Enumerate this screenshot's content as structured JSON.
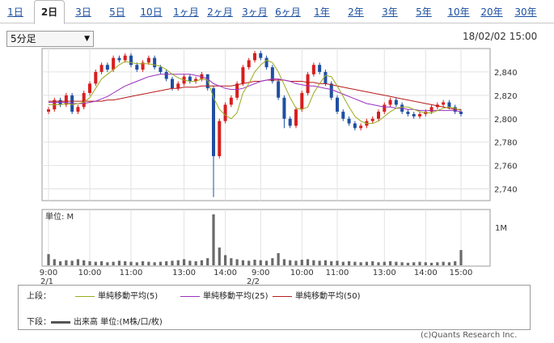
{
  "tabs": [
    {
      "label": "1日"
    },
    {
      "label": "2日"
    },
    {
      "label": "3日"
    },
    {
      "label": "5日"
    },
    {
      "label": "10日"
    },
    {
      "label": "1ヶ月"
    },
    {
      "label": "2ヶ月"
    },
    {
      "label": "3ヶ月"
    },
    {
      "label": "6ヶ月"
    },
    {
      "label": "1年"
    },
    {
      "label": "2年"
    },
    {
      "label": "3年"
    },
    {
      "label": "5年"
    },
    {
      "label": "10年"
    },
    {
      "label": "20年"
    },
    {
      "label": "30年"
    }
  ],
  "active_tab": "2日",
  "interval_select": {
    "value": "5分足",
    "arrow": "▼"
  },
  "timestamp": "18/02/02 15:00",
  "volume_panel": {
    "unit_label": "単位: M",
    "tick_label": "1M"
  },
  "x_axis": {
    "time_labels": [
      "9:00",
      "10:00",
      "11:00",
      "13:00",
      "14:00",
      "9:00",
      "10:00",
      "11:00",
      "13:00",
      "14:00",
      "15:00"
    ],
    "date_labels": [
      "2/1",
      "2/2"
    ]
  },
  "legend": {
    "upper_label": "上段：",
    "lower_label": "下段：",
    "sma5": {
      "label": "単純移動平均(5)",
      "color": "#9aab1e"
    },
    "sma25": {
      "label": "単純移動平均(25)",
      "color": "#9b2fc0"
    },
    "sma50": {
      "label": "単純移動平均(50)",
      "color": "#b81a1a"
    },
    "volume": {
      "label": "出来高 単位:(M株/口/枚)",
      "color": "#555555"
    }
  },
  "credit": "(c)Quants Research Inc.",
  "chart_data": {
    "type": "candlestick",
    "ylim": [
      2730,
      2860
    ],
    "y_ticks": [
      2740,
      2760,
      2780,
      2800,
      2820,
      2840
    ],
    "candle_colors": {
      "up": "#d81e1e",
      "down": "#1f4fa3"
    },
    "price_series": [
      2808,
      2816,
      2812,
      2820,
      2806,
      2810,
      2822,
      2830,
      2840,
      2846,
      2842,
      2852,
      2850,
      2854,
      2846,
      2842,
      2848,
      2852,
      2844,
      2840,
      2834,
      2826,
      2830,
      2836,
      2832,
      2834,
      2838,
      2826,
      2768,
      2798,
      2812,
      2818,
      2830,
      2844,
      2850,
      2856,
      2852,
      2844,
      2832,
      2818,
      2800,
      2794,
      2808,
      2822,
      2838,
      2846,
      2840,
      2830,
      2818,
      2806,
      2800,
      2796,
      2792,
      2794,
      2798,
      2800,
      2806,
      2812,
      2816,
      2812,
      2806,
      2804,
      2802,
      2804,
      2806,
      2810,
      2812,
      2814,
      2810,
      2806,
      2804
    ],
    "volume": [
      0.22,
      0.12,
      0.08,
      0.1,
      0.09,
      0.12,
      0.1,
      0.08,
      0.07,
      0.08,
      0.06,
      0.07,
      0.09,
      0.08,
      0.07,
      0.06,
      0.08,
      0.07,
      0.06,
      0.07,
      0.08,
      0.09,
      0.1,
      0.12,
      0.09,
      0.08,
      0.1,
      0.14,
      1.0,
      0.35,
      0.2,
      0.14,
      0.12,
      0.1,
      0.09,
      0.11,
      0.1,
      0.09,
      0.14,
      0.24,
      0.12,
      0.1,
      0.09,
      0.11,
      0.12,
      0.1,
      0.09,
      0.1,
      0.08,
      0.09,
      0.07,
      0.08,
      0.07,
      0.06,
      0.07,
      0.08,
      0.06,
      0.07,
      0.08,
      0.07,
      0.06,
      0.05,
      0.06,
      0.07,
      0.06,
      0.05,
      0.06,
      0.07,
      0.06,
      0.08,
      0.3
    ],
    "sma5": [
      2812,
      2812,
      2812,
      2813,
      2812,
      2813,
      2814,
      2818,
      2826,
      2834,
      2838,
      2842,
      2846,
      2849,
      2848,
      2847,
      2847,
      2847,
      2846,
      2845,
      2842,
      2838,
      2835,
      2833,
      2832,
      2832,
      2834,
      2833,
      2818,
      2808,
      2803,
      2800,
      2805,
      2822,
      2830,
      2840,
      2846,
      2850,
      2848,
      2840,
      2829,
      2818,
      2809,
      2808,
      2810,
      2822,
      2830,
      2837,
      2836,
      2828,
      2819,
      2810,
      2802,
      2798,
      2796,
      2796,
      2798,
      2802,
      2806,
      2809,
      2810,
      2810,
      2808,
      2806,
      2805,
      2805,
      2807,
      2809,
      2810,
      2809,
      2807
    ],
    "sma25": [
      2814,
      2814,
      2814,
      2814,
      2813,
      2813,
      2813,
      2814,
      2815,
      2817,
      2819,
      2822,
      2825,
      2828,
      2830,
      2832,
      2834,
      2836,
      2837,
      2838,
      2838,
      2838,
      2838,
      2838,
      2838,
      2837,
      2836,
      2834,
      2830,
      2828,
      2826,
      2825,
      2825,
      2826,
      2828,
      2830,
      2832,
      2833,
      2834,
      2834,
      2833,
      2832,
      2830,
      2829,
      2828,
      2828,
      2827,
      2826,
      2825,
      2823,
      2821,
      2819,
      2817,
      2815,
      2813,
      2812,
      2811,
      2810,
      2810,
      2809,
      2809,
      2808,
      2808,
      2807,
      2807,
      2807,
      2807,
      2807,
      2807,
      2807,
      2806
    ],
    "sma50": [
      2815,
      2815,
      2815,
      2815,
      2815,
      2815,
      2815,
      2815,
      2815,
      2815,
      2816,
      2816,
      2817,
      2818,
      2819,
      2820,
      2821,
      2822,
      2823,
      2824,
      2825,
      2826,
      2826,
      2827,
      2827,
      2827,
      2828,
      2828,
      2828,
      2828,
      2828,
      2828,
      2829,
      2830,
      2831,
      2832,
      2832,
      2833,
      2833,
      2833,
      2833,
      2832,
      2832,
      2832,
      2831,
      2831,
      2830,
      2830,
      2829,
      2828,
      2827,
      2826,
      2825,
      2824,
      2823,
      2822,
      2821,
      2820,
      2819,
      2818,
      2817,
      2816,
      2815,
      2814,
      2813,
      2812,
      2811,
      2810,
      2809,
      2808,
      2808
    ]
  }
}
